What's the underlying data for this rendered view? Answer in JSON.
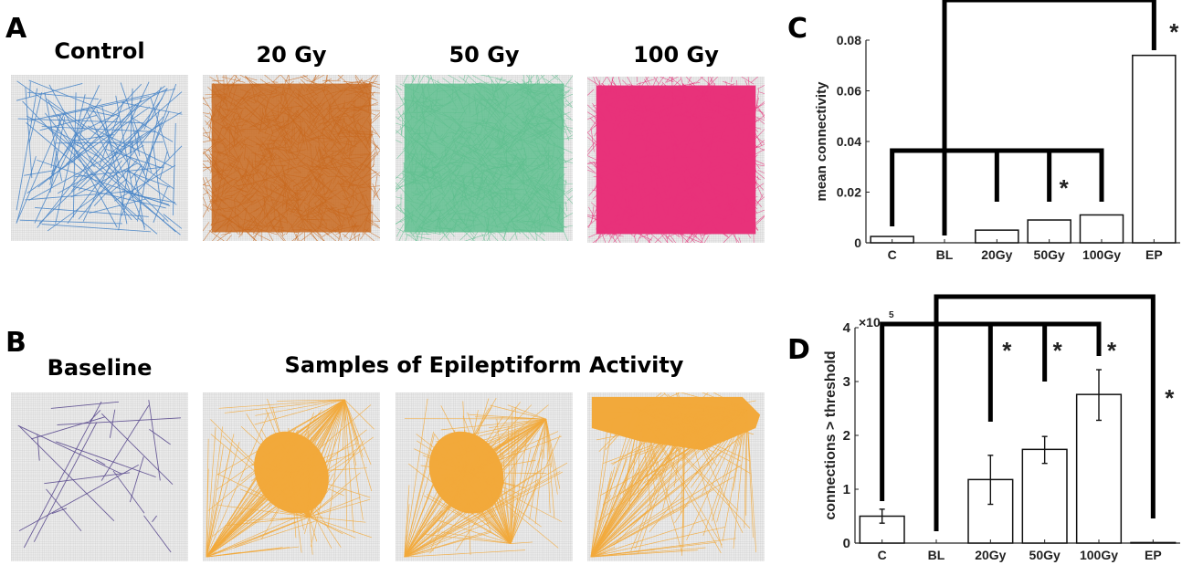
{
  "panels": {
    "A": {
      "letter": "A",
      "networks": [
        {
          "title": "Control",
          "color": "#4a86c8",
          "density": "sparse"
        },
        {
          "title": "20 Gy",
          "color": "#c8691f",
          "density": "dense"
        },
        {
          "title": "50 Gy",
          "color": "#5fbf8f",
          "density": "dense"
        },
        {
          "title": "100 Gy",
          "color": "#e8327a",
          "density": "very-dense"
        }
      ]
    },
    "B": {
      "letter": "B",
      "baseline_title": "Baseline",
      "epileptiform_title": "Samples of Epileptiform Activity",
      "networks": [
        {
          "title": "Baseline",
          "color": "#5a4a8e",
          "density": "sparse"
        },
        {
          "title": "Epileptiform sample 1",
          "color": "#f2a93b",
          "density": "hub"
        },
        {
          "title": "Epileptiform sample 2",
          "color": "#f2a93b",
          "density": "hub"
        },
        {
          "title": "Epileptiform sample 3",
          "color": "#f2a93b",
          "density": "hub-top"
        }
      ]
    }
  },
  "chart_data": [
    {
      "panel": "C",
      "type": "bar",
      "title": "",
      "xlabel": "",
      "ylabel": "mean connectivity",
      "categories": [
        "C",
        "BL",
        "20Gy",
        "50Gy",
        "100Gy",
        "EP"
      ],
      "values": [
        0.0025,
        0,
        0.005,
        0.009,
        0.011,
        0.074
      ],
      "ylim": [
        0,
        0.08
      ],
      "yticks": [
        0,
        0.02,
        0.04,
        0.06,
        0.08
      ],
      "ytick_labels": [
        "0",
        "0.02",
        "0.04",
        "0.06",
        "0.08"
      ],
      "grid": false,
      "significance": [
        {
          "from": "C",
          "to": "100Gy",
          "hub": "BL",
          "targets": [
            "C",
            "20Gy",
            "50Gy",
            "100Gy"
          ],
          "label": "*",
          "label_near": "50Gy"
        },
        {
          "from": "BL",
          "to": "EP",
          "label": "*",
          "label_near": "EP"
        }
      ]
    },
    {
      "panel": "D",
      "type": "bar",
      "title": "",
      "xlabel": "",
      "ylabel": "connections > threshold",
      "y_multiplier": "×10",
      "y_multiplier_exp": "5",
      "categories": [
        "C",
        "BL",
        "20Gy",
        "50Gy",
        "100Gy",
        "EP"
      ],
      "values": [
        0.5,
        0,
        1.18,
        1.74,
        2.76,
        0.01
      ],
      "error_low": [
        0.37,
        0,
        0.72,
        1.48,
        2.28,
        0
      ],
      "error_high": [
        0.63,
        0,
        1.63,
        1.98,
        3.22,
        0
      ],
      "ylim": [
        0,
        4
      ],
      "yticks": [
        0,
        1,
        2,
        3,
        4
      ],
      "ytick_labels": [
        "0",
        "1",
        "2",
        "3",
        "4"
      ],
      "grid": false,
      "significance": [
        {
          "from": "C",
          "to": "100Gy",
          "targets": [
            "C",
            "20Gy",
            "50Gy",
            "100Gy"
          ],
          "labels_near": [
            "20Gy",
            "50Gy",
            "100Gy"
          ],
          "label": "*"
        },
        {
          "from": "BL",
          "to": "EP",
          "label": "*",
          "label_near": "EP"
        }
      ]
    }
  ]
}
